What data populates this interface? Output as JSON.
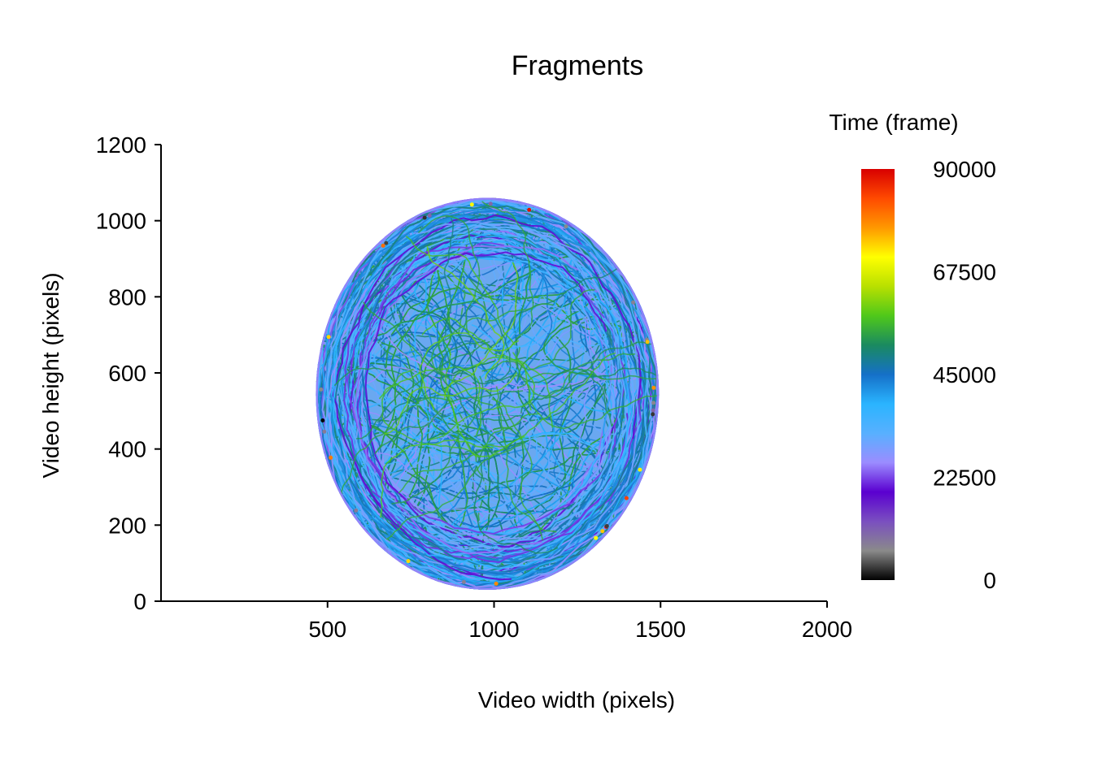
{
  "chart_data": {
    "type": "scatter",
    "title": "Fragments",
    "xlabel": "Video width (pixels)",
    "ylabel": "Video height (pixels)",
    "xlim": [
      0,
      2000
    ],
    "ylim": [
      0,
      1200
    ],
    "x_ticks": [
      "500",
      "1000",
      "1500",
      "2000"
    ],
    "y_ticks": [
      "0",
      "200",
      "400",
      "600",
      "800",
      "1000",
      "1200"
    ],
    "grid": false,
    "legend": {
      "title": "Time (frame)",
      "placement": "right",
      "type": "colorbar",
      "range": [
        0,
        90000
      ],
      "tick_labels": [
        "0",
        "22500",
        "45000",
        "67500",
        "90000"
      ],
      "colors": [
        "#000000",
        "#8a8a8a",
        "#7a4fc0",
        "#5a00d0",
        "#9b8cff",
        "#58b0ff",
        "#2ab4ff",
        "#1570c8",
        "#1a8a60",
        "#4fc81a",
        "#b8e000",
        "#ffff00",
        "#ff9800",
        "#ff4a00",
        "#d80000"
      ]
    },
    "arena": {
      "center_x": 980,
      "center_y": 545,
      "radius_x": 515,
      "radius_y": 515,
      "dominant_time_range": [
        25000,
        55000
      ]
    }
  }
}
